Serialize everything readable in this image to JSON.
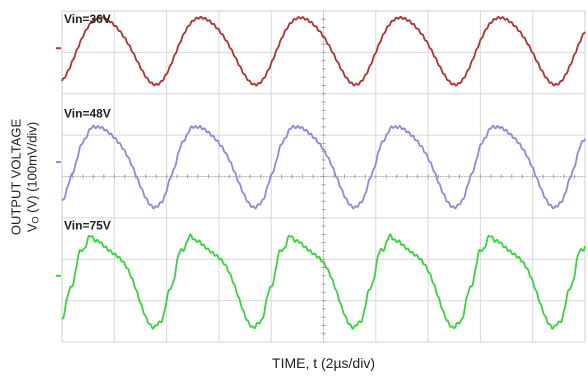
{
  "chart_data": {
    "type": "line",
    "xlabel": "TIME, t (2µs/div)",
    "ylabel_line1": "OUTPUT VOLTAGE",
    "ylabel_line2_prefix": "V",
    "ylabel_line2_sub": "O",
    "ylabel_line2_suffix": " (V) (100mV/div)",
    "x_divisions": 10,
    "y_divisions": 8,
    "xlim": [
      0,
      20
    ],
    "time_per_div_us": 2,
    "volts_per_div_mV": 100,
    "grid": true,
    "series": [
      {
        "name": "Vin=36V",
        "color": "#b5302f",
        "offset_div": 3.1,
        "amplitude_div": 0.8,
        "period_us": 3.82,
        "phase_us": 0.65,
        "harmonic2": 0.12,
        "spike": 0
      },
      {
        "name": "Vin=48V",
        "color": "#8d88e0",
        "offset_div": 0.35,
        "amplitude_div": 0.95,
        "period_us": 3.82,
        "phase_us": 0.6,
        "harmonic2": 0.18,
        "spike": 0.05
      },
      {
        "name": "Vin=75V",
        "color": "#36d639",
        "offset_div": -2.4,
        "amplitude_div": 1.0,
        "period_us": 3.82,
        "phase_us": 0.55,
        "harmonic2": 0.28,
        "spike": 0.12
      }
    ]
  }
}
